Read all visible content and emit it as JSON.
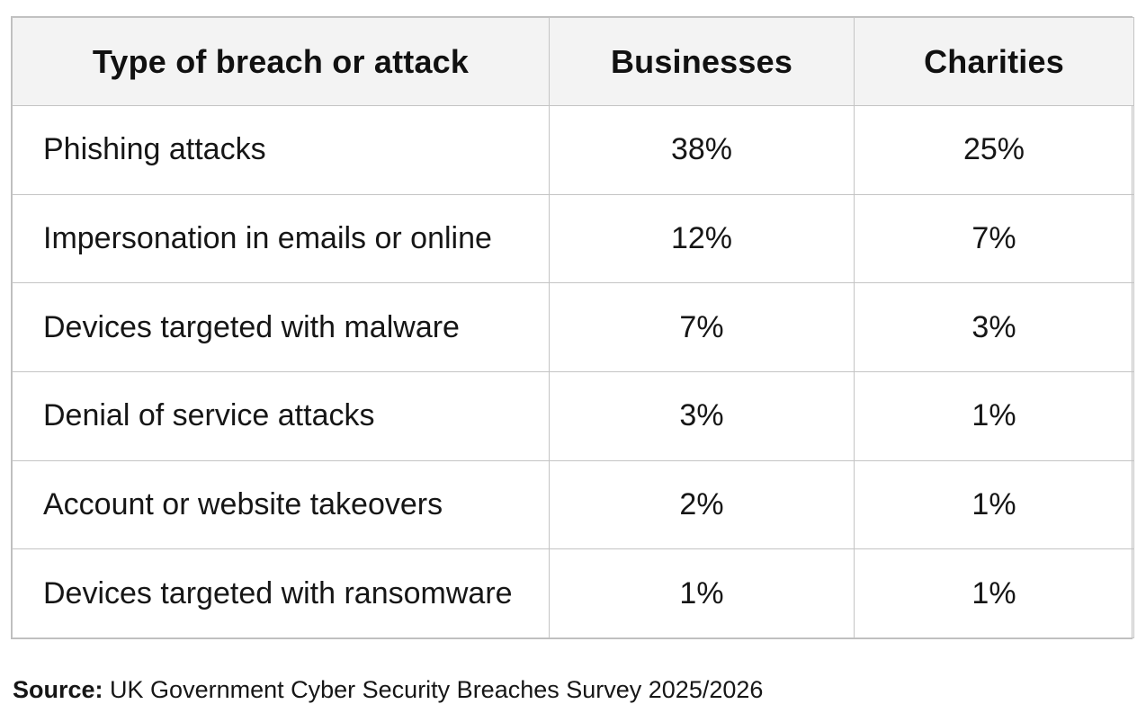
{
  "table": {
    "columns": [
      "Type of breach or attack",
      "Businesses",
      "Charities"
    ],
    "rows": [
      {
        "type": "Phishing attacks",
        "businesses": "38%",
        "charities": "25%"
      },
      {
        "type": "Impersonation in emails or online",
        "businesses": "12%",
        "charities": "7%"
      },
      {
        "type": "Devices targeted with malware",
        "businesses": "7%",
        "charities": "3%"
      },
      {
        "type": "Denial of service attacks",
        "businesses": "3%",
        "charities": "1%"
      },
      {
        "type": "Account or website takeovers",
        "businesses": "2%",
        "charities": "1%"
      },
      {
        "type": "Devices targeted with ransomware",
        "businesses": "1%",
        "charities": "1%"
      }
    ]
  },
  "source": {
    "label": "Source:",
    "text": "UK Government Cyber Security Breaches Survey 2025/2026"
  },
  "colors": {
    "header_background": "#f3f3f3",
    "border": "#c4c4c4",
    "text": "#111111"
  }
}
